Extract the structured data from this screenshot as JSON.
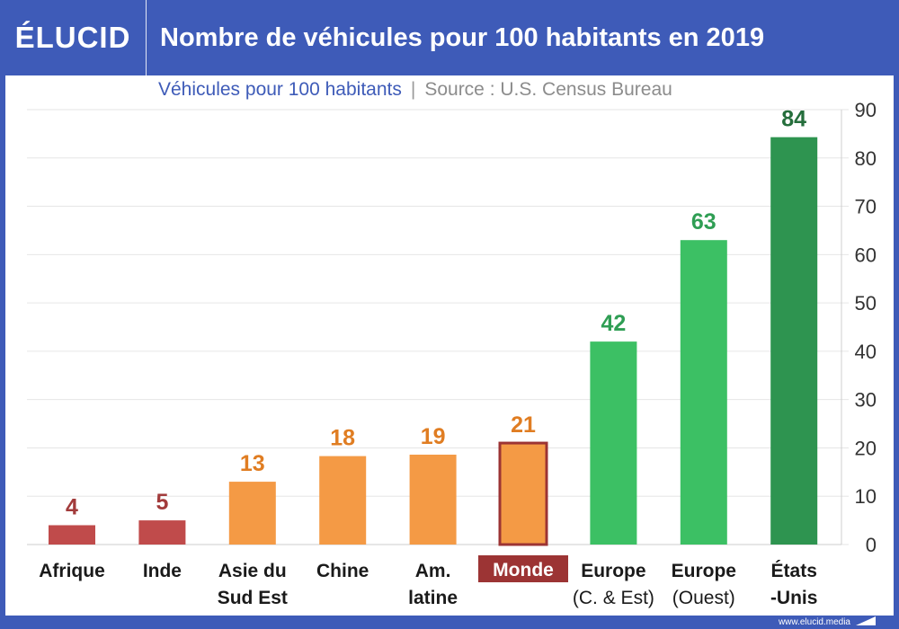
{
  "header": {
    "logo": "ÉLUCID",
    "title": "Nombre de véhicules pour 100 habitants en 2019"
  },
  "subtitle": {
    "metric": "Véhicules pour 100 habitants",
    "separator": "|",
    "source": "Source : U.S. Census Bureau"
  },
  "footer": {
    "site": "www.elucid.media"
  },
  "colors": {
    "header_bg": "#3e5bb8",
    "red": "#c04b4b",
    "orange": "#f49a45",
    "green": "#3cc064",
    "dark_green": "#2e9450",
    "grid": "#e6e6e6",
    "label_red": "#a23b3b",
    "label_orange": "#e07d22",
    "label_green": "#2f9e54",
    "label_dark_green": "#256e3c",
    "monde_bg": "#9c3434"
  },
  "chart_data": {
    "type": "bar",
    "title": "Nombre de véhicules pour 100 habitants en 2019",
    "ylabel": "Véhicules pour 100 habitants",
    "ylim": [
      0,
      90
    ],
    "yticks": [
      "0",
      "10",
      "20",
      "30",
      "40",
      "50",
      "60",
      "70",
      "80",
      "90"
    ],
    "grid": true,
    "y_axis_position": "right",
    "categories": [
      {
        "line1": "Afrique",
        "line2": "",
        "bold2": true,
        "value": 4,
        "label": "4",
        "color": "red"
      },
      {
        "line1": "Inde",
        "line2": "",
        "bold2": true,
        "value": 5,
        "label": "5",
        "color": "red"
      },
      {
        "line1": "Asie du",
        "line2": "Sud Est",
        "bold2": true,
        "value": 13,
        "label": "13",
        "color": "orange"
      },
      {
        "line1": "Chine",
        "line2": "",
        "bold2": true,
        "value": 18.3,
        "label": "18",
        "color": "orange"
      },
      {
        "line1": "Am.",
        "line2": "latine",
        "bold2": true,
        "value": 18.6,
        "label": "19",
        "color": "orange"
      },
      {
        "line1": "Monde",
        "line2": "",
        "bold2": true,
        "value": 21,
        "label": "21",
        "color": "orange",
        "highlight": true
      },
      {
        "line1": "Europe",
        "line2": "(C. & Est)",
        "bold2": false,
        "value": 42,
        "label": "42",
        "color": "green"
      },
      {
        "line1": "Europe",
        "line2": "(Ouest)",
        "bold2": false,
        "value": 63,
        "label": "63",
        "color": "green"
      },
      {
        "line1": "États",
        "line2": "-Unis",
        "bold2": true,
        "value": 84.3,
        "label": "84",
        "color": "dark_green"
      }
    ]
  }
}
